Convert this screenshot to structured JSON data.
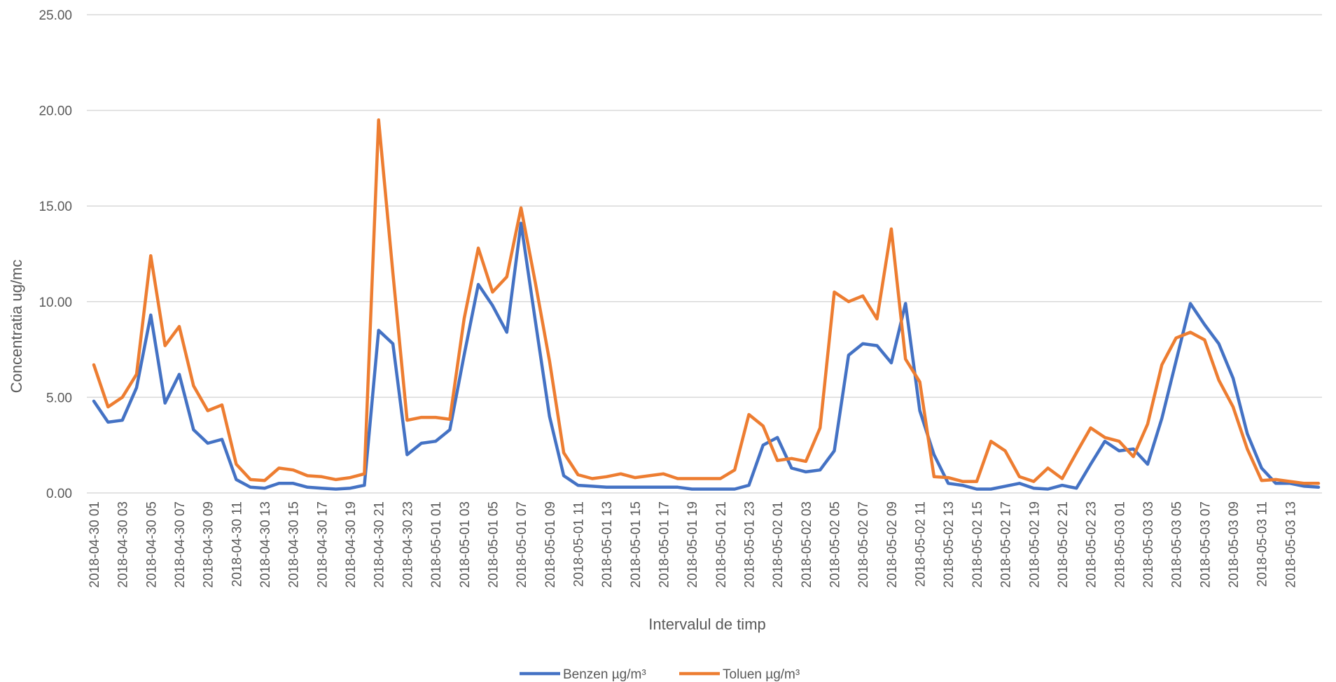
{
  "chart_data": {
    "type": "line",
    "title": "",
    "xlabel": "Intervalul de timp",
    "ylabel": "Concentratia ug/mc",
    "ylim": [
      0,
      25
    ],
    "y_ticks": [
      "0.00",
      "5.00",
      "10.00",
      "15.00",
      "20.00",
      "25.00"
    ],
    "grid": true,
    "legend_position": "bottom",
    "x_labels": [
      "2018-04-30 01",
      "2018-04-30 03",
      "2018-04-30 05",
      "2018-04-30 07",
      "2018-04-30 09",
      "2018-04-30 11",
      "2018-04-30 13",
      "2018-04-30 15",
      "2018-04-30 17",
      "2018-04-30 19",
      "2018-04-30 21",
      "2018-04-30 23",
      "2018-05-01 01",
      "2018-05-01 03",
      "2018-05-01 05",
      "2018-05-01 07",
      "2018-05-01 09",
      "2018-05-01 11",
      "2018-05-01 13",
      "2018-05-01 15",
      "2018-05-01 17",
      "2018-05-01 19",
      "2018-05-01 21",
      "2018-05-01 23",
      "2018-05-02 01",
      "2018-05-02 03",
      "2018-05-02 05",
      "2018-05-02 07",
      "2018-05-02 09",
      "2018-05-02 11",
      "2018-05-02 13",
      "2018-05-02 15",
      "2018-05-02 17",
      "2018-05-02 19",
      "2018-05-02 21",
      "2018-05-02 23",
      "2018-05-03 01",
      "2018-05-03 03",
      "2018-05-03 05",
      "2018-05-03 07",
      "2018-05-03 09",
      "2018-05-03 11",
      "2018-05-03 13"
    ],
    "series": [
      {
        "name": "Benzen µg/m³",
        "color": "#4472C4",
        "values": [
          4.8,
          3.7,
          3.8,
          5.5,
          9.3,
          4.7,
          6.2,
          3.3,
          2.6,
          2.8,
          0.7,
          0.3,
          0.25,
          0.5,
          0.5,
          0.3,
          0.25,
          0.2,
          0.25,
          0.4,
          8.5,
          7.8,
          2.0,
          2.6,
          2.7,
          3.3,
          7.2,
          10.9,
          9.8,
          8.4,
          14.1,
          9.0,
          4.0,
          0.9,
          0.4,
          0.35,
          0.3,
          0.3,
          0.3,
          0.3,
          0.3,
          0.3,
          0.2,
          0.2,
          0.2,
          0.2,
          0.4,
          2.5,
          2.9,
          1.3,
          1.1,
          1.2,
          2.2,
          7.2,
          7.8,
          7.7,
          6.8,
          9.9,
          4.3,
          2.0,
          0.5,
          0.4,
          0.2,
          0.2,
          0.35,
          0.5,
          0.25,
          0.2,
          0.4,
          0.25,
          1.5,
          2.7,
          2.2,
          2.3,
          1.5,
          3.9,
          6.9,
          9.9,
          8.8,
          7.8,
          6.0,
          3.1,
          1.3,
          0.5,
          0.5,
          0.35,
          0.3
        ]
      },
      {
        "name": "Toluen µg/m³",
        "color": "#ED7D31",
        "values": [
          6.7,
          4.5,
          5.0,
          6.2,
          12.4,
          7.7,
          8.7,
          5.6,
          4.3,
          4.6,
          1.5,
          0.7,
          0.65,
          1.3,
          1.2,
          0.9,
          0.85,
          0.7,
          0.8,
          1.0,
          19.5,
          11.5,
          3.8,
          3.95,
          3.95,
          3.85,
          9.1,
          12.8,
          10.5,
          11.3,
          14.9,
          11.0,
          6.9,
          2.1,
          0.95,
          0.75,
          0.85,
          1.0,
          0.8,
          0.9,
          1.0,
          0.75,
          0.75,
          0.75,
          0.75,
          1.2,
          4.1,
          3.5,
          1.7,
          1.8,
          1.65,
          3.4,
          10.5,
          10.0,
          10.3,
          9.1,
          13.8,
          7.0,
          5.8,
          0.85,
          0.8,
          0.6,
          0.6,
          2.7,
          2.2,
          0.85,
          0.6,
          1.3,
          0.75,
          2.1,
          3.4,
          2.9,
          2.7,
          1.9,
          3.6,
          6.7,
          8.1,
          8.4,
          8.0,
          5.9,
          4.5,
          2.3,
          0.65,
          0.7,
          0.6,
          0.5,
          0.5
        ]
      }
    ]
  }
}
